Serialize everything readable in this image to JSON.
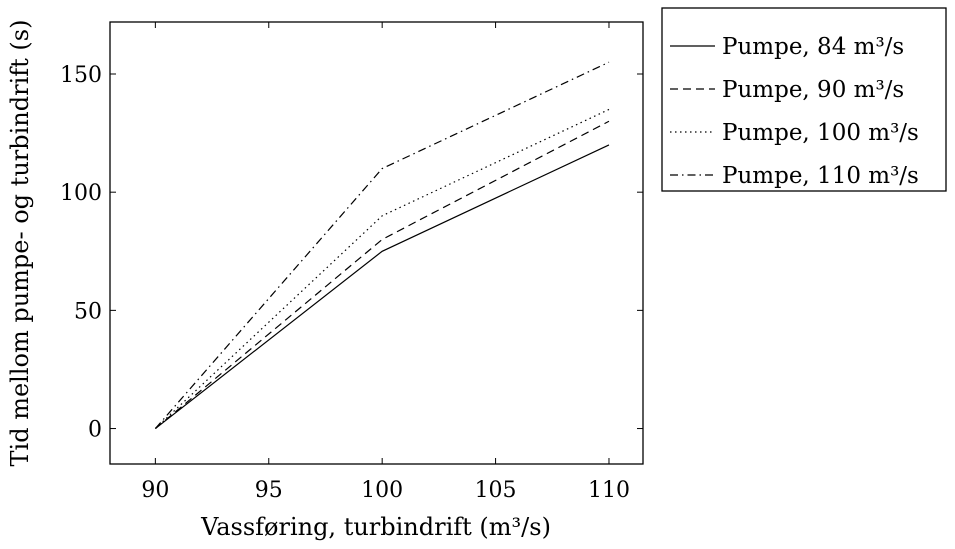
{
  "chart_data": {
    "type": "line",
    "title": "",
    "xlabel": "Vassføring, turbindrift (m³/s)",
    "ylabel": "Tid mellom pumpe- og turbindrift (s)",
    "xlim": [
      88,
      111.5
    ],
    "ylim": [
      -15,
      172
    ],
    "xticks": [
      90,
      95,
      100,
      105,
      110
    ],
    "yticks": [
      0,
      50,
      100,
      150
    ],
    "grid": false,
    "legend_position": "outside-right",
    "series": [
      {
        "name": "Pumpe, 84 m³/s",
        "style": "solid",
        "x": [
          90,
          100,
          110
        ],
        "y": [
          0,
          75,
          120
        ]
      },
      {
        "name": "Pumpe, 90 m³/s",
        "style": "dashed",
        "x": [
          90,
          100,
          110
        ],
        "y": [
          0,
          80,
          130
        ]
      },
      {
        "name": "Pumpe, 100 m³/s",
        "style": "dotted",
        "x": [
          90,
          100,
          110
        ],
        "y": [
          0,
          90,
          135
        ]
      },
      {
        "name": "Pumpe, 110 m³/s",
        "style": "dashdot",
        "x": [
          90,
          100,
          110
        ],
        "y": [
          0,
          110,
          155
        ]
      }
    ]
  }
}
